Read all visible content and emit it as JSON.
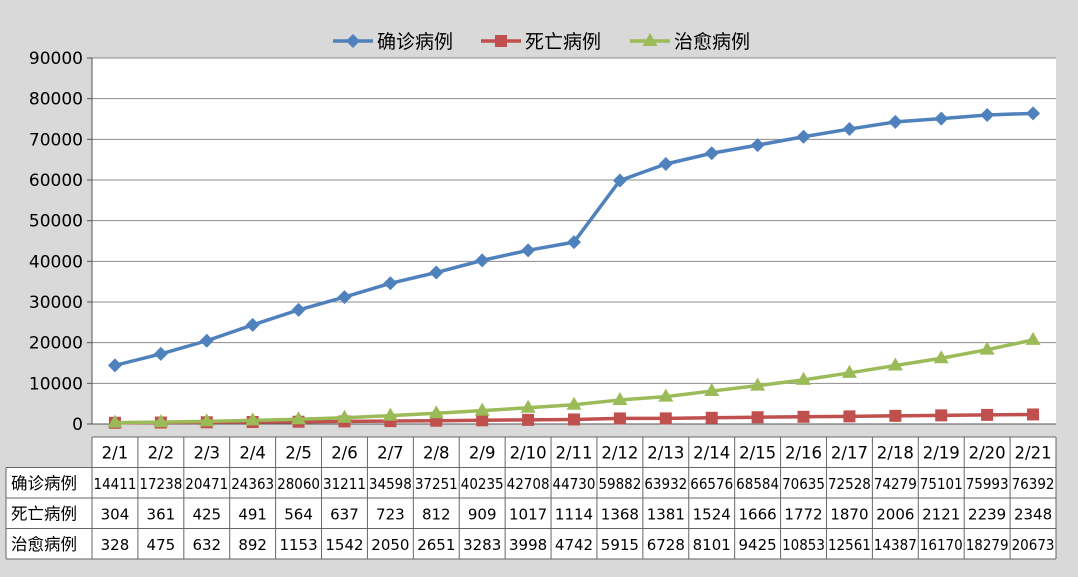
{
  "chart_data": {
    "type": "line",
    "categories": [
      "2/1",
      "2/2",
      "2/3",
      "2/4",
      "2/5",
      "2/6",
      "2/7",
      "2/8",
      "2/9",
      "2/10",
      "2/11",
      "2/12",
      "2/13",
      "2/14",
      "2/15",
      "2/16",
      "2/17",
      "2/18",
      "2/19",
      "2/20",
      "2/21"
    ],
    "series": [
      {
        "name": "确诊病例",
        "color": "#4f81bd",
        "marker": "diamond",
        "values": [
          14411,
          17238,
          20471,
          24363,
          28060,
          31211,
          34598,
          37251,
          40235,
          42708,
          44730,
          59882,
          63932,
          66576,
          68584,
          70635,
          72528,
          74279,
          75101,
          75993,
          76392
        ],
        "table_values": [
          "14411",
          "17238",
          "20471",
          "24363",
          "28060",
          "31211",
          "34598",
          "37251",
          "40235",
          "42708",
          "44730",
          "59882",
          "63932",
          "66576",
          "68584",
          "70635",
          "72528",
          "74279",
          "75101",
          "75993",
          "76392"
        ]
      },
      {
        "name": "死亡病例",
        "color": "#c0504d",
        "marker": "square",
        "values": [
          304,
          361,
          425,
          491,
          564,
          637,
          723,
          812,
          909,
          1017,
          1114,
          1368,
          1381,
          1524,
          1666,
          1772,
          1870,
          2006,
          2121,
          2239,
          2348
        ],
        "table_values": [
          "304",
          "361",
          "425",
          "491",
          "564",
          "637",
          "723",
          "812",
          "909",
          "1017",
          "1114",
          "1368",
          "1381",
          "1524",
          "1666",
          "1772",
          "1870",
          "2006",
          "2121",
          "2239",
          "2348"
        ]
      },
      {
        "name": "治愈病例",
        "color": "#9bbb59",
        "marker": "triangle",
        "values": [
          328,
          475,
          632,
          892,
          1153,
          1542,
          2050,
          2651,
          3283,
          3998,
          4742,
          5915,
          6728,
          8101,
          9425,
          10853,
          12561,
          14387,
          16170,
          18279,
          20673
        ],
        "table_values": [
          "328",
          "475",
          "632",
          "892",
          "1153",
          "1542",
          "2050",
          "2651",
          "3283",
          "3998",
          "4742",
          "5915",
          "6728",
          "8101",
          "9425",
          "10853",
          "12561",
          "14387",
          "16170",
          "18279",
          "20673"
        ]
      }
    ],
    "y_ticks": [
      "0",
      "10000",
      "20000",
      "30000",
      "40000",
      "50000",
      "60000",
      "70000",
      "80000",
      "90000"
    ],
    "ylim": [
      0,
      90000
    ],
    "grid": true,
    "legend": "top-center",
    "data_table": true
  }
}
